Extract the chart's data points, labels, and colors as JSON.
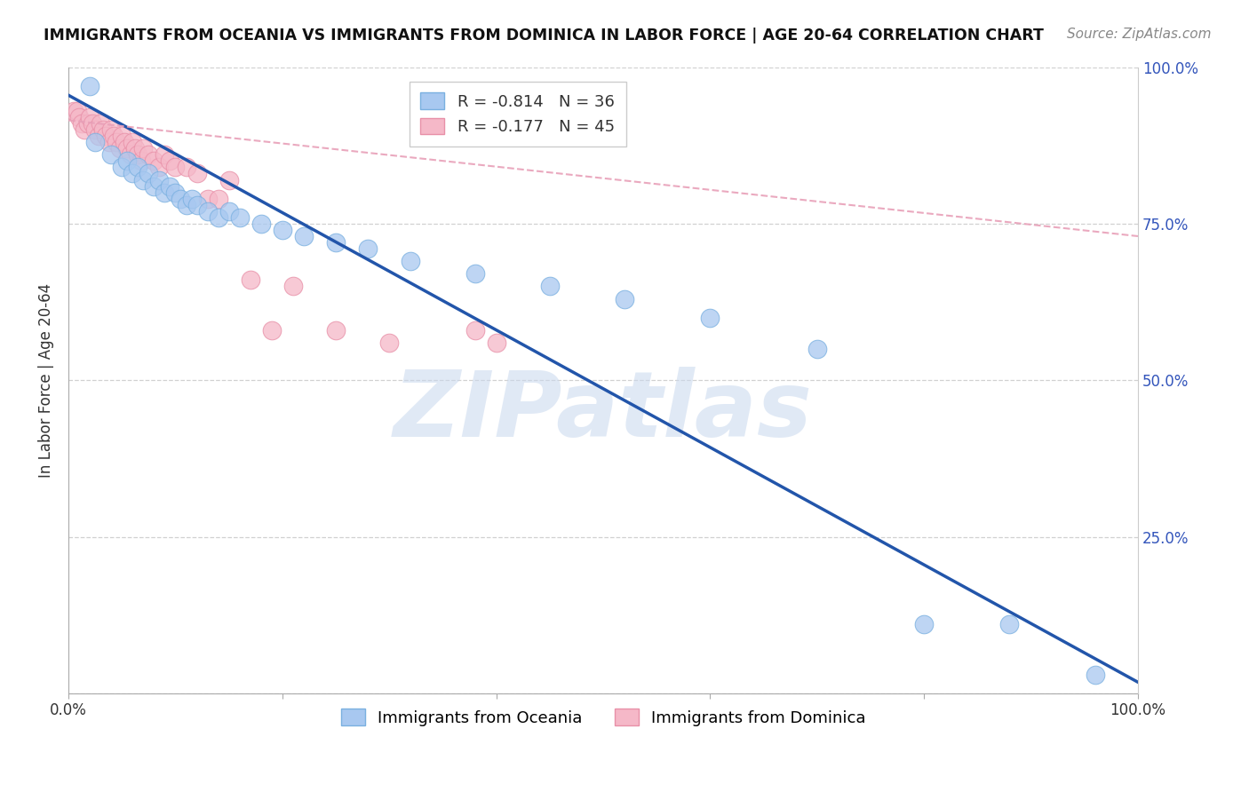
{
  "title": "IMMIGRANTS FROM OCEANIA VS IMMIGRANTS FROM DOMINICA IN LABOR FORCE | AGE 20-64 CORRELATION CHART",
  "source": "Source: ZipAtlas.com",
  "ylabel": "In Labor Force | Age 20-64",
  "oceania_color": "#a8c8f0",
  "oceania_edge_color": "#7ab0e0",
  "dominica_color": "#f5b8c8",
  "dominica_edge_color": "#e890a8",
  "oceania_line_color": "#2255aa",
  "dominica_line_color": "#e8a0b8",
  "oceania_R": -0.814,
  "oceania_N": 36,
  "dominica_R": -0.177,
  "dominica_N": 45,
  "watermark": "ZIPatlas",
  "watermark_color": "#c8d8ee",
  "oceania_x": [
    0.02,
    0.025,
    0.04,
    0.05,
    0.055,
    0.06,
    0.065,
    0.07,
    0.075,
    0.08,
    0.085,
    0.09,
    0.095,
    0.1,
    0.105,
    0.11,
    0.115,
    0.12,
    0.13,
    0.14,
    0.15,
    0.16,
    0.18,
    0.2,
    0.22,
    0.25,
    0.28,
    0.32,
    0.38,
    0.45,
    0.52,
    0.6,
    0.7,
    0.8,
    0.88,
    0.96
  ],
  "oceania_y": [
    0.97,
    0.88,
    0.86,
    0.84,
    0.85,
    0.83,
    0.84,
    0.82,
    0.83,
    0.81,
    0.82,
    0.8,
    0.81,
    0.8,
    0.79,
    0.78,
    0.79,
    0.78,
    0.77,
    0.76,
    0.77,
    0.76,
    0.75,
    0.74,
    0.73,
    0.72,
    0.71,
    0.69,
    0.67,
    0.65,
    0.63,
    0.6,
    0.55,
    0.11,
    0.11,
    0.03
  ],
  "dominica_x": [
    0.005,
    0.008,
    0.01,
    0.012,
    0.015,
    0.018,
    0.02,
    0.022,
    0.025,
    0.028,
    0.03,
    0.032,
    0.035,
    0.038,
    0.04,
    0.042,
    0.045,
    0.048,
    0.05,
    0.052,
    0.055,
    0.058,
    0.06,
    0.062,
    0.065,
    0.068,
    0.07,
    0.075,
    0.08,
    0.085,
    0.09,
    0.095,
    0.1,
    0.11,
    0.12,
    0.13,
    0.14,
    0.15,
    0.17,
    0.19,
    0.21,
    0.25,
    0.3,
    0.38,
    0.4
  ],
  "dominica_y": [
    0.93,
    0.93,
    0.92,
    0.91,
    0.9,
    0.91,
    0.92,
    0.91,
    0.9,
    0.89,
    0.91,
    0.9,
    0.89,
    0.88,
    0.9,
    0.89,
    0.88,
    0.87,
    0.89,
    0.88,
    0.87,
    0.86,
    0.88,
    0.87,
    0.86,
    0.85,
    0.87,
    0.86,
    0.85,
    0.84,
    0.86,
    0.85,
    0.84,
    0.84,
    0.83,
    0.79,
    0.79,
    0.82,
    0.66,
    0.58,
    0.65,
    0.58,
    0.56,
    0.58,
    0.56
  ],
  "y_ticks": [
    0.0,
    0.25,
    0.5,
    0.75,
    1.0
  ],
  "y_labels_right": [
    "",
    "25.0%",
    "50.0%",
    "75.0%",
    "100.0%"
  ],
  "x_ticks": [
    0.0,
    0.2,
    0.4,
    0.6,
    0.8,
    1.0
  ],
  "x_labels": [
    "0.0%",
    "",
    "",
    "",
    "",
    "100.0%"
  ]
}
